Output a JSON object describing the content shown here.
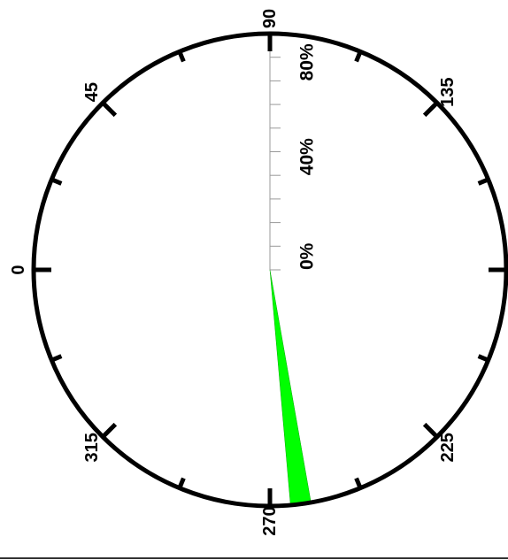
{
  "chart_data": {
    "type": "rose",
    "direction_labels": [
      {
        "angle": 90,
        "text": "90"
      },
      {
        "angle": 135,
        "text": "135"
      },
      {
        "angle": 225,
        "text": "225"
      },
      {
        "angle": 270,
        "text": "270"
      },
      {
        "angle": 315,
        "text": "315"
      },
      {
        "angle": 0,
        "text": "0"
      },
      {
        "angle": 45,
        "text": "45"
      }
    ],
    "radial_labels": [
      {
        "value": 0,
        "text": "0%"
      },
      {
        "value": 40,
        "text": "40%"
      },
      {
        "value": 80,
        "text": "80%"
      }
    ],
    "radial_max": 100,
    "radial_minor_step": 10,
    "major_tick_step_deg": 45,
    "minor_tick_step_deg": 22.5,
    "petals": [
      {
        "start_angle": 260,
        "end_angle": 265,
        "value": 100,
        "color": "#00ff00"
      }
    ],
    "circle_color": "#000000",
    "radial_axis_color": "#999999"
  }
}
